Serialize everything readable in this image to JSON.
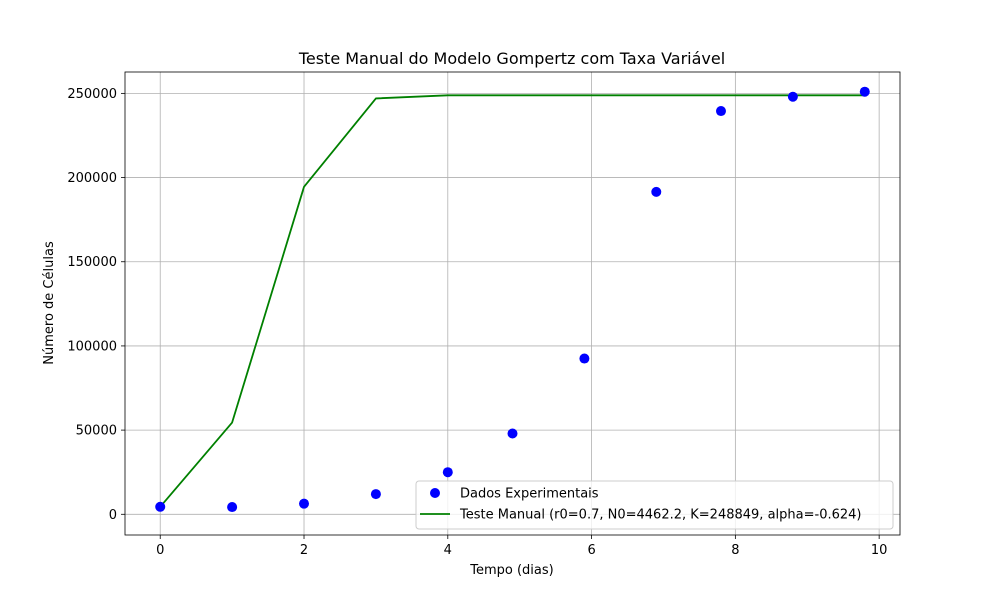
{
  "chart_data": {
    "type": "scatter",
    "title": "Teste Manual do Modelo Gompertz com Taxa Variável",
    "xlabel": "Tempo (dias)",
    "ylabel": "Número de Células",
    "xlim": [
      -0.49,
      10.29
    ],
    "ylim": [
      -12300,
      262700
    ],
    "xticks": [
      0,
      2,
      4,
      6,
      8,
      10
    ],
    "yticks": [
      0,
      50000,
      100000,
      150000,
      200000,
      250000
    ],
    "grid": true,
    "legend_position": "lower-right",
    "series": [
      {
        "name": "Dados Experimentais",
        "kind": "scatter",
        "color": "#0000ff",
        "x": [
          0,
          1,
          2,
          3,
          4,
          4.9,
          5.9,
          6.9,
          7.8,
          8.8,
          9.8
        ],
        "y": [
          4462,
          4300,
          6300,
          12000,
          25000,
          48000,
          92500,
          191500,
          239500,
          248000,
          251000
        ]
      },
      {
        "name": "Teste Manual (r0=0.7, N0=4462.2, K=248849, alpha=-0.624)",
        "kind": "line",
        "color": "#008000",
        "x": [
          0,
          1,
          2,
          3,
          4,
          5,
          6,
          7,
          8,
          9,
          9.8
        ],
        "y": [
          4462,
          54500,
          194500,
          247000,
          248849,
          248849,
          248849,
          248849,
          248849,
          248849,
          248849
        ]
      }
    ]
  }
}
